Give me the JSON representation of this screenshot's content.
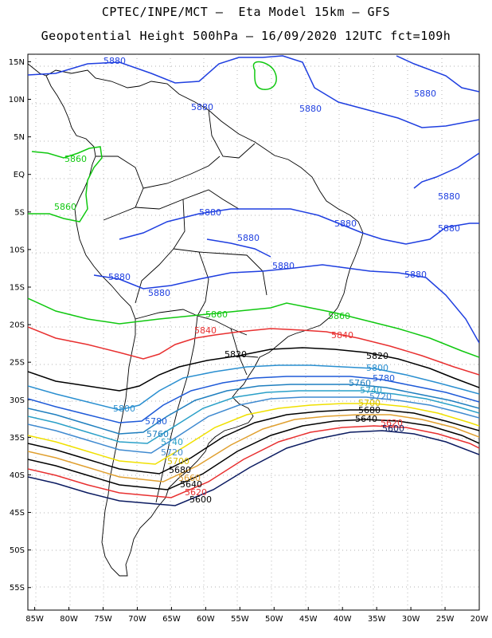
{
  "header": {
    "line1": "CPTEC/INPE/MCT –  Eta Model 15km – GFS",
    "line2": "Geopotential Height 500hPa – 16/09/2020 12UTC fct=109h"
  },
  "map": {
    "projection": "lat-lon",
    "lon_range": [
      -86,
      -20
    ],
    "lat_range": [
      -58,
      16
    ],
    "lon_ticks": [
      "85W",
      "80W",
      "75W",
      "70W",
      "65W",
      "60W",
      "55W",
      "50W",
      "45W",
      "40W",
      "35W",
      "30W",
      "25W",
      "20W"
    ],
    "lat_ticks": [
      "15N",
      "10N",
      "5N",
      "EQ",
      "5S",
      "10S",
      "15S",
      "20S",
      "25S",
      "30S",
      "35S",
      "40S",
      "45S",
      "50S",
      "55S"
    ],
    "grid": "dotted",
    "field": "Geopotential Height 500hPa"
  },
  "contours": [
    {
      "level": "5880",
      "color": "#1f3fe0"
    },
    {
      "level": "5860",
      "color": "#10c810"
    },
    {
      "level": "5840",
      "color": "#e83030"
    },
    {
      "level": "5820",
      "color": "#000000"
    },
    {
      "level": "5800",
      "color": "#2a8fd0"
    },
    {
      "level": "5780",
      "color": "#1e5ad8"
    },
    {
      "level": "5760",
      "color": "#1f7fbf"
    },
    {
      "level": "5740",
      "color": "#2aa0c8"
    },
    {
      "level": "5720",
      "color": "#3f8ad0"
    },
    {
      "level": "5700",
      "color": "#f0e000"
    },
    {
      "level": "5680",
      "color": "#000000"
    },
    {
      "level": "5660",
      "color": "#e0a030"
    },
    {
      "level": "5640",
      "color": "#000000"
    },
    {
      "level": "5620",
      "color": "#e83030"
    },
    {
      "level": "5600",
      "color": "#000000"
    }
  ]
}
